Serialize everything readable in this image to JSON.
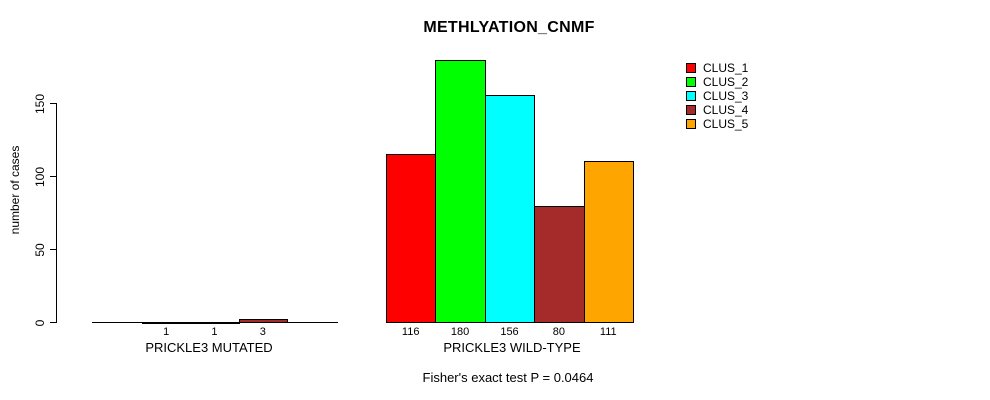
{
  "chart_data": {
    "type": "bar",
    "title": "METHLYATION_CNMF",
    "ylabel": "number of cases",
    "xlabel": "",
    "ylim": [
      0,
      180
    ],
    "yticks": [
      0,
      50,
      100,
      150
    ],
    "grid": false,
    "legend_position": "top-right",
    "annotation": "Fisher's exact test P = 0.0464",
    "groups": [
      {
        "label": "PRICKLE3 MUTATED",
        "bars": [
          {
            "cluster": "CLUS_1",
            "value": 1,
            "color": "#FF0000"
          },
          {
            "cluster": "CLUS_2",
            "value": 1,
            "color": "#00FF00"
          },
          {
            "cluster": "CLUS_4",
            "value": 3,
            "color": "#A52A2A"
          }
        ]
      },
      {
        "label": "PRICKLE3 WILD-TYPE",
        "bars": [
          {
            "cluster": "CLUS_1",
            "value": 116,
            "color": "#FF0000"
          },
          {
            "cluster": "CLUS_2",
            "value": 180,
            "color": "#00FF00"
          },
          {
            "cluster": "CLUS_3",
            "value": 156,
            "color": "#00FFFF"
          },
          {
            "cluster": "CLUS_4",
            "value": 80,
            "color": "#A52A2A"
          },
          {
            "cluster": "CLUS_5",
            "value": 111,
            "color": "#FFA500"
          }
        ]
      }
    ],
    "legend": [
      {
        "label": "CLUS_1",
        "color": "#FF0000"
      },
      {
        "label": "CLUS_2",
        "color": "#00FF00"
      },
      {
        "label": "CLUS_3",
        "color": "#00FFFF"
      },
      {
        "label": "CLUS_4",
        "color": "#A52A2A"
      },
      {
        "label": "CLUS_5",
        "color": "#FFA500"
      }
    ]
  }
}
